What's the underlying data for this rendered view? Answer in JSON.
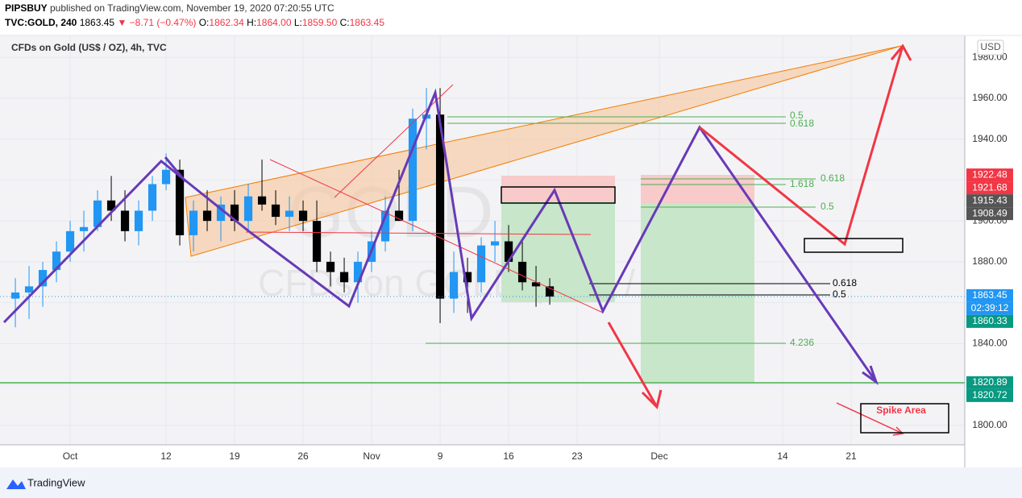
{
  "header": {
    "author": "PIPSBUY",
    "published": " published on TradingView.com, November 19, 2020 07:20:55 UTC",
    "symbol": "TVC:GOLD, 240",
    "last": "1863.45",
    "change": "▼ −8.71 (−0.47%)",
    "ohlc": [
      {
        "key": "O:",
        "value": "1862.34"
      },
      {
        "key": "H:",
        "value": "1864.00"
      },
      {
        "key": "L:",
        "value": "1859.50"
      },
      {
        "key": "C:",
        "value": "1863.45"
      }
    ]
  },
  "legend": "CFDs on Gold (US$ / OZ), 4h, TVC",
  "watermark": {
    "symbol": "GOLD, 4h",
    "name": "CFDs on GOLD (US$ / OZ)"
  },
  "currency": "USD",
  "countdown": "02:39:12",
  "footer": "TradingView",
  "annotations": {
    "fib_top_05": "0.5",
    "fib_top_0618": "0.618",
    "fib_1618": "1.618",
    "fib_right_0618": "0.618",
    "fib_right_05": "0.5",
    "fib_black_0618": "0.618",
    "fib_black_05": "0.5",
    "fib_4236": "4.236",
    "spike": "Spike Area"
  },
  "chart_data": {
    "type": "candlestick",
    "x": [
      -4,
      -3,
      -2,
      -1,
      0,
      1,
      2,
      3,
      4,
      5,
      6,
      7,
      8,
      9,
      10,
      11,
      12,
      13,
      14,
      15,
      16,
      17,
      18,
      19,
      20,
      21,
      22,
      23,
      24,
      25,
      26,
      27,
      28,
      29,
      30,
      31,
      32,
      33,
      34,
      35
    ],
    "open": [
      1862,
      1865,
      1868,
      1876,
      1885,
      1895,
      1897,
      1910,
      1905,
      1895,
      1905,
      1918,
      1925,
      1893,
      1905,
      1900,
      1908,
      1900,
      1912,
      1908,
      1902,
      1905,
      1900,
      1880,
      1875,
      1870,
      1880,
      1890,
      1905,
      1900,
      1950,
      1952,
      1862,
      1875,
      1870,
      1888,
      1890,
      1880,
      1870,
      1868
    ],
    "high": [
      1872,
      1878,
      1880,
      1890,
      1900,
      1905,
      1915,
      1922,
      1915,
      1910,
      1922,
      1933,
      1930,
      1910,
      1915,
      1912,
      1915,
      1918,
      1930,
      1915,
      1912,
      1910,
      1910,
      1885,
      1882,
      1885,
      1895,
      1912,
      1925,
      1955,
      1965,
      1965,
      1885,
      1882,
      1892,
      1900,
      1898,
      1890,
      1878,
      1872
    ],
    "low": [
      1848,
      1852,
      1858,
      1870,
      1880,
      1885,
      1895,
      1900,
      1890,
      1888,
      1900,
      1915,
      1888,
      1885,
      1895,
      1890,
      1895,
      1895,
      1905,
      1898,
      1895,
      1895,
      1875,
      1868,
      1865,
      1860,
      1875,
      1885,
      1900,
      1895,
      1935,
      1850,
      1855,
      1855,
      1865,
      1880,
      1875,
      1866,
      1858,
      1859
    ],
    "close": [
      1865,
      1868,
      1876,
      1885,
      1895,
      1897,
      1910,
      1905,
      1895,
      1905,
      1918,
      1925,
      1893,
      1905,
      1900,
      1908,
      1900,
      1912,
      1908,
      1902,
      1905,
      1900,
      1880,
      1875,
      1870,
      1880,
      1890,
      1905,
      1900,
      1950,
      1952,
      1862,
      1875,
      1870,
      1888,
      1890,
      1880,
      1870,
      1868,
      1863
    ],
    "up_color": "#2196f3",
    "down_color": "#000000",
    "xlim": [
      -5.12,
      65.29
    ],
    "xticks": [
      {
        "value": 0,
        "label": "Oct"
      },
      {
        "value": 7,
        "label": "12"
      },
      {
        "value": 12,
        "label": "19"
      },
      {
        "value": 17,
        "label": "26"
      },
      {
        "value": 22,
        "label": "Nov"
      },
      {
        "value": 27,
        "label": "9"
      },
      {
        "value": 32,
        "label": "16"
      },
      {
        "value": 37,
        "label": "23"
      },
      {
        "value": 43,
        "label": "Dec"
      },
      {
        "value": 52,
        "label": "14"
      },
      {
        "value": 57,
        "label": "21"
      }
    ],
    "ylim": [
      1790.5,
      1990.7
    ],
    "yticks": [
      {
        "value": 1800,
        "label": "1800.00"
      },
      {
        "value": 1820,
        "label": "1820.00"
      },
      {
        "value": 1840,
        "label": "1840.00"
      },
      {
        "value": 1860,
        "label": "1860.00"
      },
      {
        "value": 1880,
        "label": "1880.00"
      },
      {
        "value": 1900,
        "label": "1900.00"
      },
      {
        "value": 1920,
        "label": "1920.00"
      },
      {
        "value": 1940,
        "label": "1940.00"
      },
      {
        "value": 1960,
        "label": "1960.00"
      },
      {
        "value": 1980,
        "label": "1980.00"
      }
    ],
    "price_labels": [
      {
        "value": 1922.48,
        "color": "#f23645"
      },
      {
        "value": 1921.68,
        "color": "#f23645"
      },
      {
        "value": 1915.43,
        "color": "#555555"
      },
      {
        "value": 1908.49,
        "color": "#555555"
      },
      {
        "value": 1863.45,
        "color": "#2196f3"
      },
      {
        "value": 1860.33,
        "color": "#089981"
      },
      {
        "value": 1820.89,
        "color": "#089981"
      },
      {
        "value": 1820.72,
        "color": "#089981"
      }
    ]
  }
}
